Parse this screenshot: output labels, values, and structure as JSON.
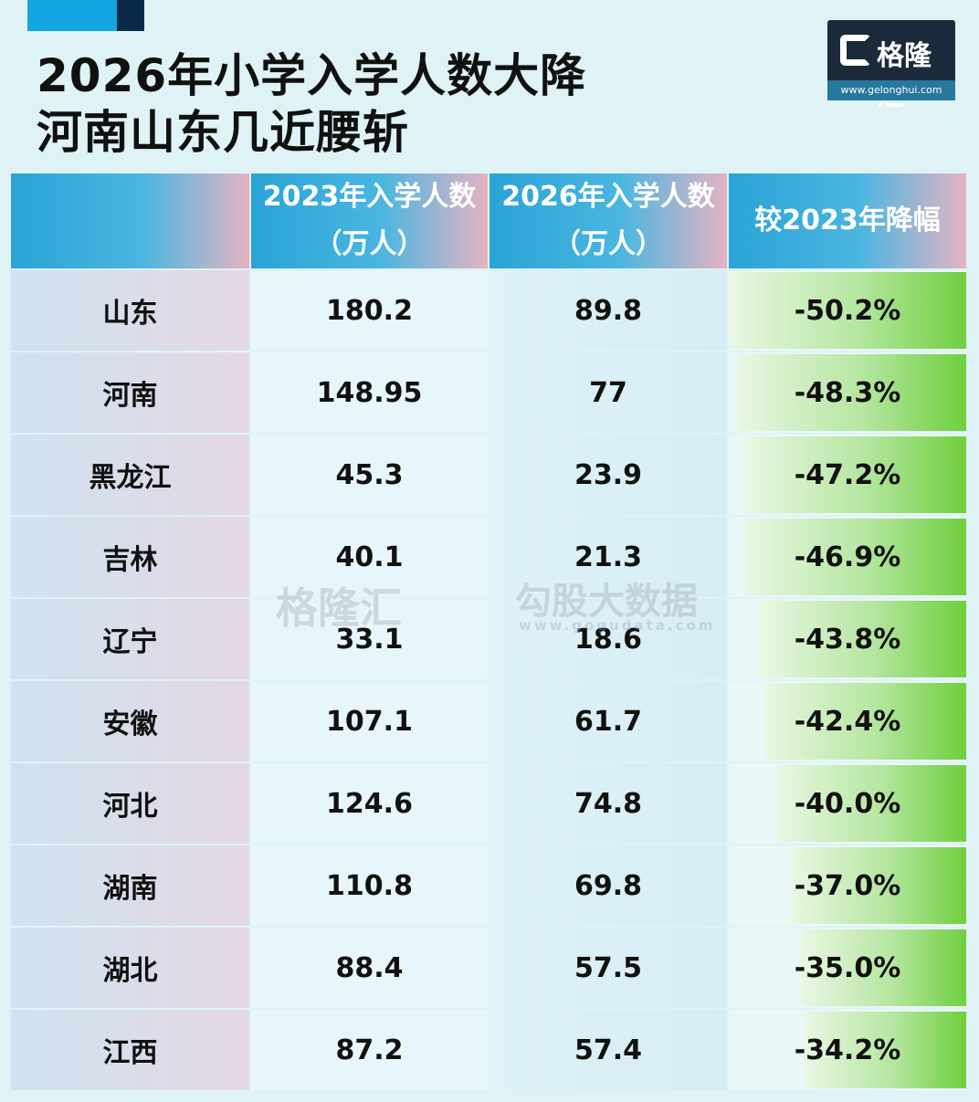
{
  "title_line1": "2026年小学入学人数大降",
  "title_line2": "河南山东几近腰斩",
  "logo": {
    "name": "格隆汇",
    "url": "www.gelonghui.com"
  },
  "watermark": {
    "left": "格隆汇",
    "right": "勾股大数据",
    "right_url": "www.gogudata.com"
  },
  "chart_data": {
    "type": "table",
    "columns": [
      {
        "line1": "",
        "line2": ""
      },
      {
        "line1": "2023年入学人数",
        "line2": "（万人）"
      },
      {
        "line1": "2026年入学人数",
        "line2": "（万人）"
      },
      {
        "line1": "较2023年降幅",
        "line2": ""
      }
    ],
    "rows": [
      {
        "province": "山东",
        "y2023": "180.2",
        "y2026": "89.8",
        "drop": "-50.2%",
        "drop_value": 50.2
      },
      {
        "province": "河南",
        "y2023": "148.95",
        "y2026": "77",
        "drop": "-48.3%",
        "drop_value": 48.3
      },
      {
        "province": "黑龙江",
        "y2023": "45.3",
        "y2026": "23.9",
        "drop": "-47.2%",
        "drop_value": 47.2
      },
      {
        "province": "吉林",
        "y2023": "40.1",
        "y2026": "21.3",
        "drop": "-46.9%",
        "drop_value": 46.9
      },
      {
        "province": "辽宁",
        "y2023": "33.1",
        "y2026": "18.6",
        "drop": "-43.8%",
        "drop_value": 43.8
      },
      {
        "province": "安徽",
        "y2023": "107.1",
        "y2026": "61.7",
        "drop": "-42.4%",
        "drop_value": 42.4
      },
      {
        "province": "河北",
        "y2023": "124.6",
        "y2026": "74.8",
        "drop": "-40.0%",
        "drop_value": 40.0
      },
      {
        "province": "湖南",
        "y2023": "110.8",
        "y2026": "69.8",
        "drop": "-37.0%",
        "drop_value": 37.0
      },
      {
        "province": "湖北",
        "y2023": "88.4",
        "y2026": "57.5",
        "drop": "-35.0%",
        "drop_value": 35.0
      },
      {
        "province": "江西",
        "y2023": "87.2",
        "y2026": "57.4",
        "drop": "-34.2%",
        "drop_value": 34.2
      }
    ]
  }
}
